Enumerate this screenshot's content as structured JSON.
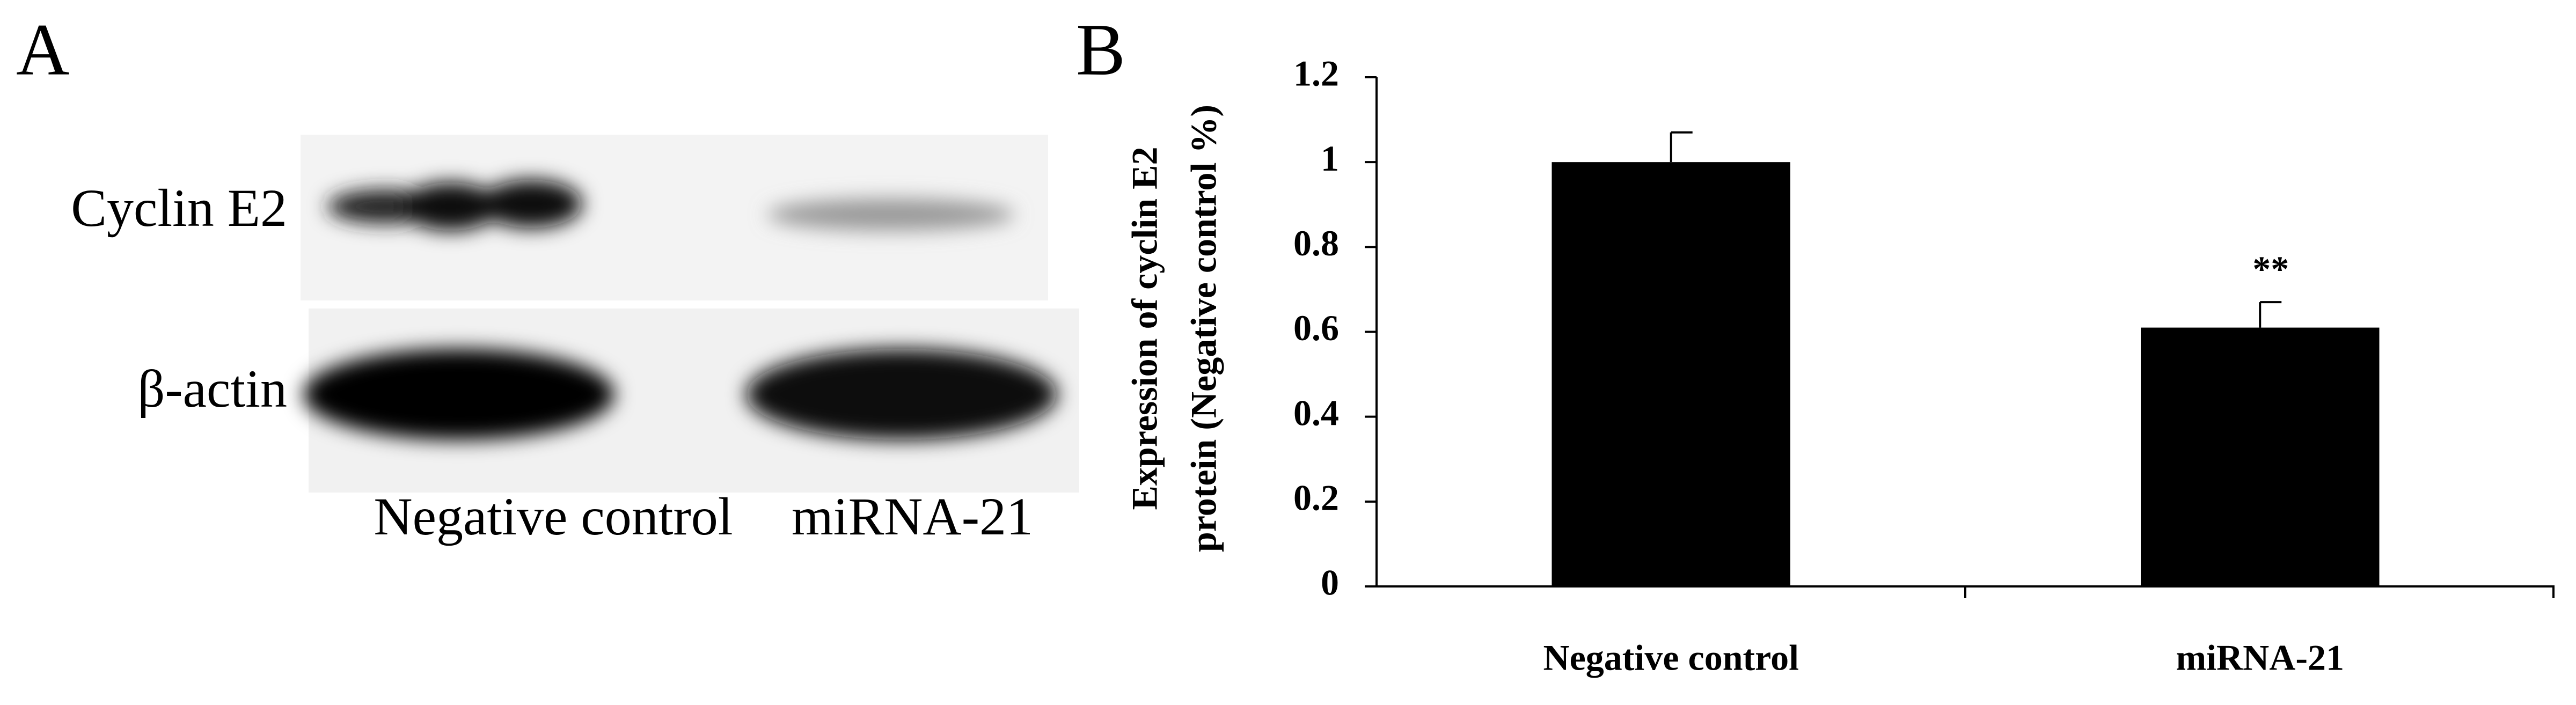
{
  "panel_a": {
    "label": "A",
    "rows": [
      "Cyclin E2",
      "β-actin"
    ],
    "lanes": [
      "Negative control",
      "miRNA-21"
    ]
  },
  "chart_data": {
    "type": "bar",
    "label": "B",
    "ylabel": [
      "Expression of cyclin E2",
      "protein (Negative control %)"
    ],
    "categories": [
      "Negative control",
      "miRNA-21"
    ],
    "values": [
      1.0,
      0.61
    ],
    "errors": [
      0.07,
      0.06
    ],
    "color": "#000000",
    "annotations": [
      {
        "text": "**",
        "category": "miRNA-21"
      }
    ],
    "ylim": [
      0,
      1.2
    ],
    "yticks": [
      0,
      0.2,
      0.4,
      0.6,
      0.8,
      1,
      1.2
    ]
  }
}
